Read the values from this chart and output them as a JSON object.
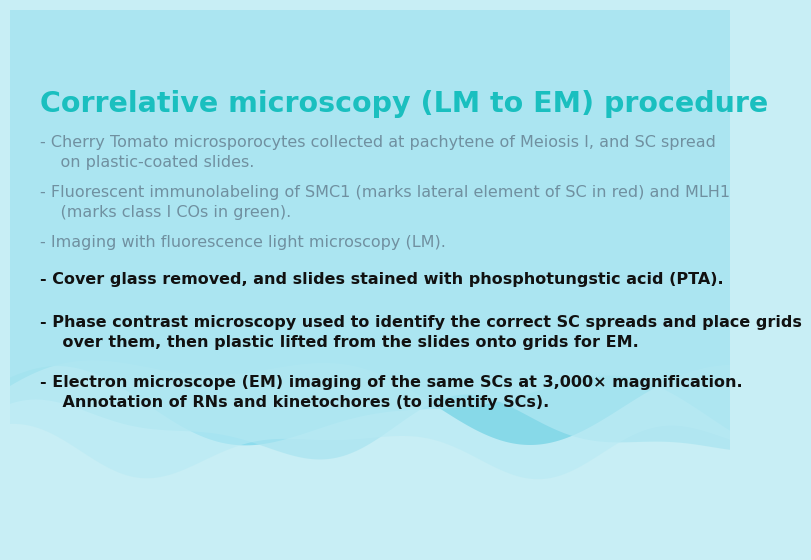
{
  "title": "Correlative microscopy (LM to EM) procedure",
  "title_color": "#1ABFBF",
  "title_fontsize": 20.5,
  "background_color": "#C8EEF5",
  "wave_color_1": "#40C0D8",
  "wave_color_2": "#80D8EC",
  "wave_color_3": "#A8E4F0",
  "wave_color_4": "#B8EAF4",
  "bullet_fontsize": 11.5,
  "bullets": [
    {
      "text": "- Cherry Tomato microsporocytes collected at pachytene of Meiosis I, and SC spread\n    on plastic-coated slides.",
      "bold": false,
      "color": "#7090A0"
    },
    {
      "text": "- Fluorescent immunolabeling of SMC1 (marks lateral element of SC in red) and MLH1\n    (marks class I COs in green).",
      "bold": false,
      "color": "#7090A0"
    },
    {
      "text": "- Imaging with fluorescence light microscopy (LM).",
      "bold": false,
      "color": "#7090A0"
    },
    {
      "text": "- Cover glass removed, and slides stained with phosphotungstic acid (PTA).",
      "bold": true,
      "color": "#111111"
    },
    {
      "text": "- Phase contrast microscopy used to identify the correct SC spreads and place grids\n    over them, then plastic lifted from the slides onto grids for EM.",
      "bold": true,
      "color": "#111111"
    },
    {
      "text": "- Electron microscope (EM) imaging of the same SCs at 3,000× magnification.\n    Annotation of RNs and kinetochores (to identify SCs).",
      "bold": true,
      "color": "#111111"
    }
  ]
}
